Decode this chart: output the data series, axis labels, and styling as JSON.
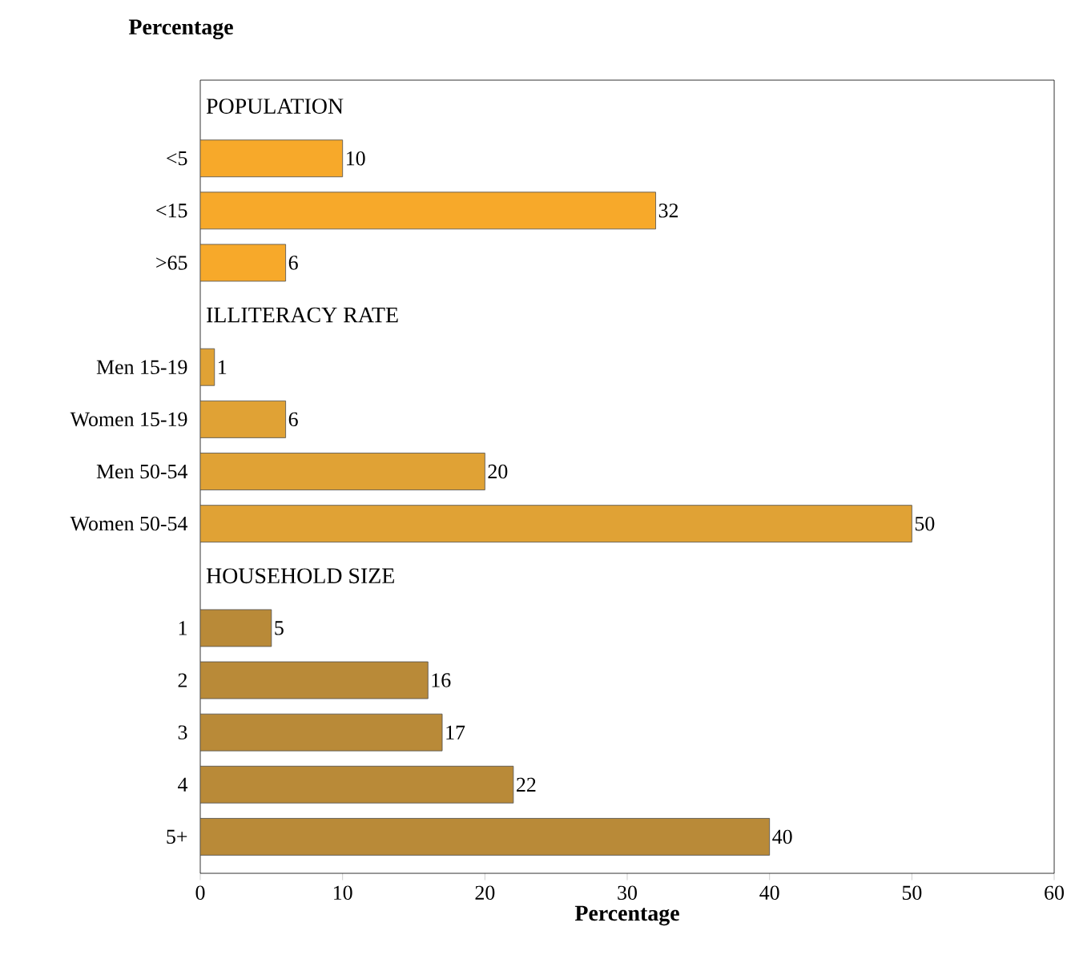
{
  "chart_data": {
    "type": "bar",
    "orientation": "horizontal",
    "xlabel": "Percentage",
    "ylabel": "Percentage",
    "categories": [
      null,
      "<5",
      "<15",
      ">65",
      null,
      "Men 15-19",
      "Women 15-19",
      "Men 50-54",
      "Women 50-54",
      null,
      "1",
      "2",
      "3",
      "4",
      "5+"
    ],
    "values": [
      null,
      10,
      32,
      6,
      null,
      1,
      6,
      20,
      50,
      null,
      5,
      16,
      17,
      22,
      40
    ],
    "colors": [
      "#f7a92a",
      "#f7a92a",
      "#f7a92a",
      "#f7a92a",
      "#e0a235",
      "#e0a235",
      "#e0a235",
      "#e0a235",
      "#e0a235",
      "#b98a38",
      "#b98a38",
      "#b98a38",
      "#b98a38",
      "#b98a38",
      "#b98a38"
    ],
    "annotations": [
      "POPULATION",
      "ILLITERACY RATE",
      "HOUSEHOLD SIZE"
    ],
    "data_labels": true,
    "xlim": [
      0,
      60
    ],
    "xticks": [
      0,
      10,
      20,
      30,
      40,
      50,
      60
    ],
    "grid": false
  }
}
